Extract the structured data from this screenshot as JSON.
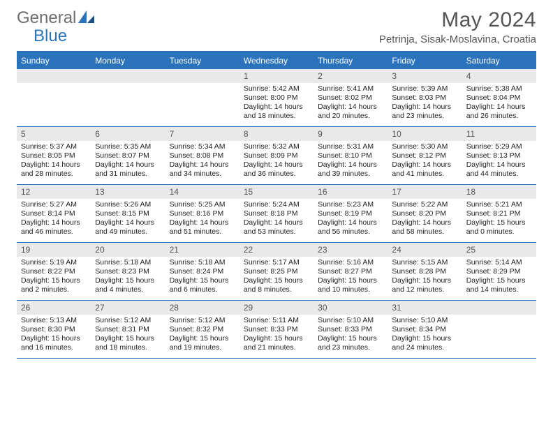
{
  "brand": {
    "part1": "General",
    "part2": "Blue"
  },
  "title": "May 2024",
  "location": "Petrinja, Sisak-Moslavina, Croatia",
  "colors": {
    "accent": "#2b72bd",
    "header_text": "#ffffff",
    "daynum_bg": "#e9e9e9",
    "text_muted": "#555555",
    "text": "#222222",
    "bg": "#ffffff"
  },
  "day_names": [
    "Sunday",
    "Monday",
    "Tuesday",
    "Wednesday",
    "Thursday",
    "Friday",
    "Saturday"
  ],
  "weeks": [
    [
      {
        "n": "",
        "sr": "",
        "ss": "",
        "dl": ""
      },
      {
        "n": "",
        "sr": "",
        "ss": "",
        "dl": ""
      },
      {
        "n": "",
        "sr": "",
        "ss": "",
        "dl": ""
      },
      {
        "n": "1",
        "sr": "Sunrise: 5:42 AM",
        "ss": "Sunset: 8:00 PM",
        "dl": "Daylight: 14 hours and 18 minutes."
      },
      {
        "n": "2",
        "sr": "Sunrise: 5:41 AM",
        "ss": "Sunset: 8:02 PM",
        "dl": "Daylight: 14 hours and 20 minutes."
      },
      {
        "n": "3",
        "sr": "Sunrise: 5:39 AM",
        "ss": "Sunset: 8:03 PM",
        "dl": "Daylight: 14 hours and 23 minutes."
      },
      {
        "n": "4",
        "sr": "Sunrise: 5:38 AM",
        "ss": "Sunset: 8:04 PM",
        "dl": "Daylight: 14 hours and 26 minutes."
      }
    ],
    [
      {
        "n": "5",
        "sr": "Sunrise: 5:37 AM",
        "ss": "Sunset: 8:05 PM",
        "dl": "Daylight: 14 hours and 28 minutes."
      },
      {
        "n": "6",
        "sr": "Sunrise: 5:35 AM",
        "ss": "Sunset: 8:07 PM",
        "dl": "Daylight: 14 hours and 31 minutes."
      },
      {
        "n": "7",
        "sr": "Sunrise: 5:34 AM",
        "ss": "Sunset: 8:08 PM",
        "dl": "Daylight: 14 hours and 34 minutes."
      },
      {
        "n": "8",
        "sr": "Sunrise: 5:32 AM",
        "ss": "Sunset: 8:09 PM",
        "dl": "Daylight: 14 hours and 36 minutes."
      },
      {
        "n": "9",
        "sr": "Sunrise: 5:31 AM",
        "ss": "Sunset: 8:10 PM",
        "dl": "Daylight: 14 hours and 39 minutes."
      },
      {
        "n": "10",
        "sr": "Sunrise: 5:30 AM",
        "ss": "Sunset: 8:12 PM",
        "dl": "Daylight: 14 hours and 41 minutes."
      },
      {
        "n": "11",
        "sr": "Sunrise: 5:29 AM",
        "ss": "Sunset: 8:13 PM",
        "dl": "Daylight: 14 hours and 44 minutes."
      }
    ],
    [
      {
        "n": "12",
        "sr": "Sunrise: 5:27 AM",
        "ss": "Sunset: 8:14 PM",
        "dl": "Daylight: 14 hours and 46 minutes."
      },
      {
        "n": "13",
        "sr": "Sunrise: 5:26 AM",
        "ss": "Sunset: 8:15 PM",
        "dl": "Daylight: 14 hours and 49 minutes."
      },
      {
        "n": "14",
        "sr": "Sunrise: 5:25 AM",
        "ss": "Sunset: 8:16 PM",
        "dl": "Daylight: 14 hours and 51 minutes."
      },
      {
        "n": "15",
        "sr": "Sunrise: 5:24 AM",
        "ss": "Sunset: 8:18 PM",
        "dl": "Daylight: 14 hours and 53 minutes."
      },
      {
        "n": "16",
        "sr": "Sunrise: 5:23 AM",
        "ss": "Sunset: 8:19 PM",
        "dl": "Daylight: 14 hours and 56 minutes."
      },
      {
        "n": "17",
        "sr": "Sunrise: 5:22 AM",
        "ss": "Sunset: 8:20 PM",
        "dl": "Daylight: 14 hours and 58 minutes."
      },
      {
        "n": "18",
        "sr": "Sunrise: 5:21 AM",
        "ss": "Sunset: 8:21 PM",
        "dl": "Daylight: 15 hours and 0 minutes."
      }
    ],
    [
      {
        "n": "19",
        "sr": "Sunrise: 5:19 AM",
        "ss": "Sunset: 8:22 PM",
        "dl": "Daylight: 15 hours and 2 minutes."
      },
      {
        "n": "20",
        "sr": "Sunrise: 5:18 AM",
        "ss": "Sunset: 8:23 PM",
        "dl": "Daylight: 15 hours and 4 minutes."
      },
      {
        "n": "21",
        "sr": "Sunrise: 5:18 AM",
        "ss": "Sunset: 8:24 PM",
        "dl": "Daylight: 15 hours and 6 minutes."
      },
      {
        "n": "22",
        "sr": "Sunrise: 5:17 AM",
        "ss": "Sunset: 8:25 PM",
        "dl": "Daylight: 15 hours and 8 minutes."
      },
      {
        "n": "23",
        "sr": "Sunrise: 5:16 AM",
        "ss": "Sunset: 8:27 PM",
        "dl": "Daylight: 15 hours and 10 minutes."
      },
      {
        "n": "24",
        "sr": "Sunrise: 5:15 AM",
        "ss": "Sunset: 8:28 PM",
        "dl": "Daylight: 15 hours and 12 minutes."
      },
      {
        "n": "25",
        "sr": "Sunrise: 5:14 AM",
        "ss": "Sunset: 8:29 PM",
        "dl": "Daylight: 15 hours and 14 minutes."
      }
    ],
    [
      {
        "n": "26",
        "sr": "Sunrise: 5:13 AM",
        "ss": "Sunset: 8:30 PM",
        "dl": "Daylight: 15 hours and 16 minutes."
      },
      {
        "n": "27",
        "sr": "Sunrise: 5:12 AM",
        "ss": "Sunset: 8:31 PM",
        "dl": "Daylight: 15 hours and 18 minutes."
      },
      {
        "n": "28",
        "sr": "Sunrise: 5:12 AM",
        "ss": "Sunset: 8:32 PM",
        "dl": "Daylight: 15 hours and 19 minutes."
      },
      {
        "n": "29",
        "sr": "Sunrise: 5:11 AM",
        "ss": "Sunset: 8:33 PM",
        "dl": "Daylight: 15 hours and 21 minutes."
      },
      {
        "n": "30",
        "sr": "Sunrise: 5:10 AM",
        "ss": "Sunset: 8:33 PM",
        "dl": "Daylight: 15 hours and 23 minutes."
      },
      {
        "n": "31",
        "sr": "Sunrise: 5:10 AM",
        "ss": "Sunset: 8:34 PM",
        "dl": "Daylight: 15 hours and 24 minutes."
      },
      {
        "n": "",
        "sr": "",
        "ss": "",
        "dl": ""
      }
    ]
  ]
}
